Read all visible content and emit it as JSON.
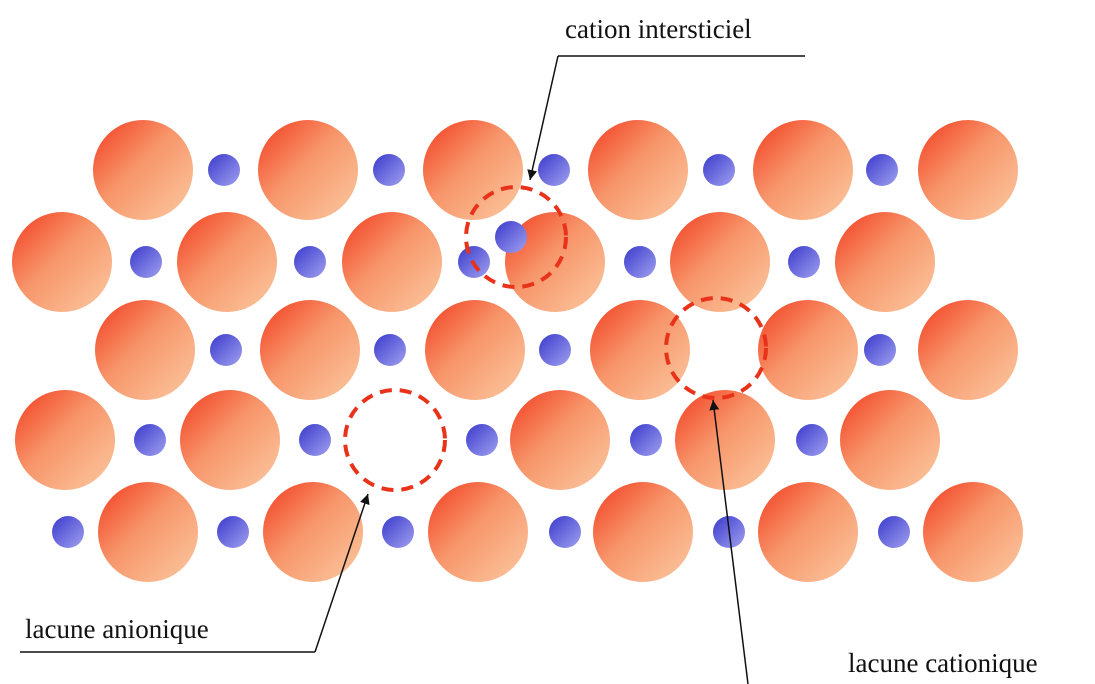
{
  "labels": {
    "interstitial_cation": "cation intersticiel",
    "anion_vacancy": "lacune anionique",
    "cation_vacancy": "lacune cationique"
  }
}
